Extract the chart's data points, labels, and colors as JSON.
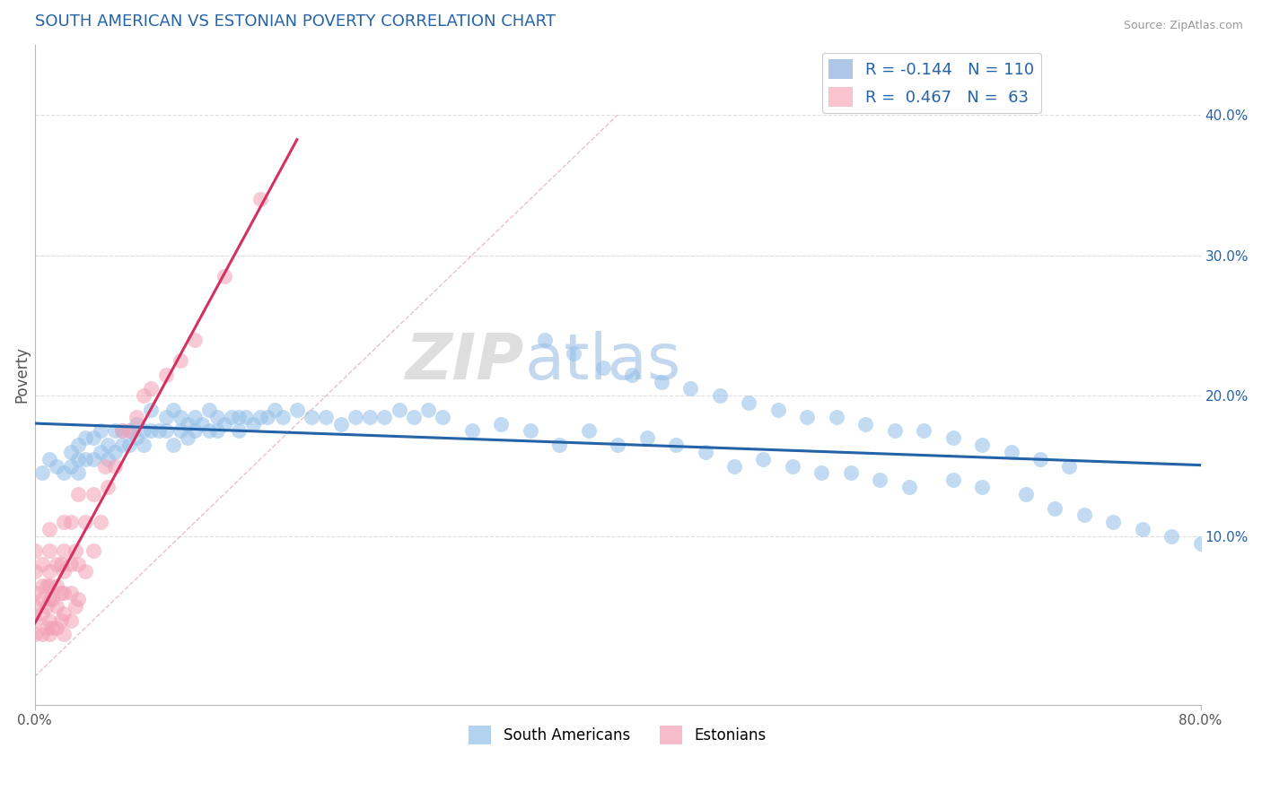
{
  "title": "SOUTH AMERICAN VS ESTONIAN POVERTY CORRELATION CHART",
  "source": "Source: ZipAtlas.com",
  "ylabel": "Poverty",
  "right_yticks": [
    "10.0%",
    "20.0%",
    "30.0%",
    "40.0%"
  ],
  "right_ytick_vals": [
    0.1,
    0.2,
    0.3,
    0.4
  ],
  "xlim": [
    0.0,
    0.8
  ],
  "ylim": [
    -0.02,
    0.45
  ],
  "legend1_color": "#aec6e8",
  "legend2_color": "#f9c4cd",
  "legend1_R": "-0.144",
  "legend1_N": "110",
  "legend2_R": "0.467",
  "legend2_N": "63",
  "blue_color": "#92bfe8",
  "pink_color": "#f4a0b5",
  "blue_line_color": "#2563a8",
  "pink_line_color": "#d63060",
  "diagonal_color": "#e8b0bb",
  "grid_color": "#dddddd",
  "title_color": "#2563a8",
  "source_color": "#999999",
  "background_color": "#ffffff",
  "watermark_zip": "ZIP",
  "watermark_atlas": "atlas",
  "blue_scatter_x": [
    0.005,
    0.01,
    0.015,
    0.02,
    0.025,
    0.025,
    0.03,
    0.03,
    0.03,
    0.035,
    0.035,
    0.04,
    0.04,
    0.045,
    0.045,
    0.05,
    0.05,
    0.055,
    0.055,
    0.06,
    0.06,
    0.065,
    0.065,
    0.07,
    0.07,
    0.075,
    0.075,
    0.08,
    0.08,
    0.085,
    0.09,
    0.09,
    0.095,
    0.095,
    0.1,
    0.1,
    0.105,
    0.105,
    0.11,
    0.11,
    0.115,
    0.12,
    0.12,
    0.125,
    0.125,
    0.13,
    0.135,
    0.14,
    0.14,
    0.145,
    0.15,
    0.155,
    0.16,
    0.165,
    0.17,
    0.18,
    0.19,
    0.2,
    0.21,
    0.22,
    0.23,
    0.24,
    0.25,
    0.26,
    0.27,
    0.28,
    0.3,
    0.32,
    0.34,
    0.36,
    0.38,
    0.4,
    0.42,
    0.44,
    0.46,
    0.48,
    0.5,
    0.52,
    0.54,
    0.56,
    0.58,
    0.6,
    0.63,
    0.65,
    0.68,
    0.7,
    0.72,
    0.74,
    0.76,
    0.78,
    0.8,
    0.35,
    0.37,
    0.39,
    0.41,
    0.43,
    0.45,
    0.47,
    0.49,
    0.51,
    0.53,
    0.55,
    0.57,
    0.59,
    0.61,
    0.63,
    0.65,
    0.67,
    0.69,
    0.71
  ],
  "blue_scatter_y": [
    0.145,
    0.155,
    0.15,
    0.145,
    0.16,
    0.15,
    0.165,
    0.155,
    0.145,
    0.17,
    0.155,
    0.17,
    0.155,
    0.16,
    0.175,
    0.165,
    0.155,
    0.175,
    0.16,
    0.175,
    0.165,
    0.165,
    0.175,
    0.17,
    0.18,
    0.175,
    0.165,
    0.175,
    0.19,
    0.175,
    0.185,
    0.175,
    0.19,
    0.165,
    0.185,
    0.175,
    0.17,
    0.18,
    0.175,
    0.185,
    0.18,
    0.175,
    0.19,
    0.185,
    0.175,
    0.18,
    0.185,
    0.185,
    0.175,
    0.185,
    0.18,
    0.185,
    0.185,
    0.19,
    0.185,
    0.19,
    0.185,
    0.185,
    0.18,
    0.185,
    0.185,
    0.185,
    0.19,
    0.185,
    0.19,
    0.185,
    0.175,
    0.18,
    0.175,
    0.165,
    0.175,
    0.165,
    0.17,
    0.165,
    0.16,
    0.15,
    0.155,
    0.15,
    0.145,
    0.145,
    0.14,
    0.135,
    0.14,
    0.135,
    0.13,
    0.12,
    0.115,
    0.11,
    0.105,
    0.1,
    0.095,
    0.24,
    0.23,
    0.22,
    0.215,
    0.21,
    0.205,
    0.2,
    0.195,
    0.19,
    0.185,
    0.185,
    0.18,
    0.175,
    0.175,
    0.17,
    0.165,
    0.16,
    0.155,
    0.15
  ],
  "pink_scatter_x": [
    0.0,
    0.0,
    0.0,
    0.0,
    0.0,
    0.0,
    0.005,
    0.005,
    0.005,
    0.005,
    0.005,
    0.008,
    0.008,
    0.008,
    0.01,
    0.01,
    0.01,
    0.01,
    0.01,
    0.01,
    0.01,
    0.012,
    0.012,
    0.015,
    0.015,
    0.015,
    0.015,
    0.018,
    0.018,
    0.018,
    0.02,
    0.02,
    0.02,
    0.02,
    0.02,
    0.02,
    0.025,
    0.025,
    0.025,
    0.025,
    0.028,
    0.028,
    0.03,
    0.03,
    0.03,
    0.035,
    0.035,
    0.04,
    0.04,
    0.045,
    0.048,
    0.05,
    0.055,
    0.06,
    0.065,
    0.07,
    0.075,
    0.08,
    0.09,
    0.1,
    0.11,
    0.13,
    0.155
  ],
  "pink_scatter_y": [
    0.03,
    0.04,
    0.05,
    0.06,
    0.075,
    0.09,
    0.03,
    0.045,
    0.055,
    0.065,
    0.08,
    0.035,
    0.05,
    0.065,
    0.03,
    0.04,
    0.055,
    0.065,
    0.075,
    0.09,
    0.105,
    0.035,
    0.055,
    0.035,
    0.05,
    0.065,
    0.08,
    0.04,
    0.06,
    0.08,
    0.03,
    0.045,
    0.06,
    0.075,
    0.09,
    0.11,
    0.04,
    0.06,
    0.08,
    0.11,
    0.05,
    0.09,
    0.055,
    0.08,
    0.13,
    0.075,
    0.11,
    0.09,
    0.13,
    0.11,
    0.15,
    0.135,
    0.15,
    0.175,
    0.175,
    0.185,
    0.2,
    0.205,
    0.215,
    0.225,
    0.24,
    0.285,
    0.34
  ]
}
